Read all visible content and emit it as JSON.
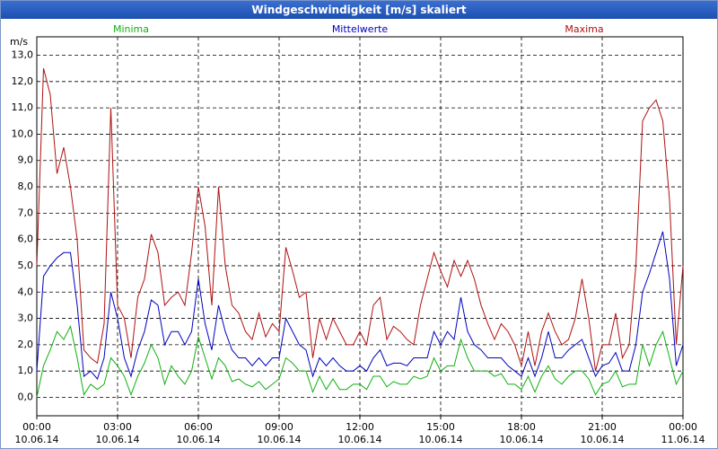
{
  "chart_data": {
    "type": "line",
    "title": "Windgeschwindigkeit [m/s] skaliert",
    "y_label": "m/s",
    "x": [
      0,
      0.25,
      0.5,
      0.75,
      1,
      1.25,
      1.5,
      1.75,
      2,
      2.25,
      2.5,
      2.75,
      3,
      3.25,
      3.5,
      3.75,
      4,
      4.25,
      4.5,
      4.75,
      5,
      5.25,
      5.5,
      5.75,
      6,
      6.25,
      6.5,
      6.75,
      7,
      7.25,
      7.5,
      7.75,
      8,
      8.25,
      8.5,
      8.75,
      9,
      9.25,
      9.5,
      9.75,
      10,
      10.25,
      10.5,
      10.75,
      11,
      11.25,
      11.5,
      11.75,
      12,
      12.25,
      12.5,
      12.75,
      13,
      13.25,
      13.5,
      13.75,
      14,
      14.25,
      14.5,
      14.75,
      15,
      15.25,
      15.5,
      15.75,
      16,
      16.25,
      16.5,
      16.75,
      17,
      17.25,
      17.5,
      17.75,
      18,
      18.25,
      18.5,
      18.75,
      19,
      19.25,
      19.5,
      19.75,
      20,
      20.25,
      20.5,
      20.75,
      21,
      21.25,
      21.5,
      21.75,
      22,
      22.25,
      22.5,
      22.75,
      23,
      23.25,
      23.5,
      23.75,
      24
    ],
    "series": [
      {
        "name": "Minima",
        "color": "#10b010",
        "values": [
          0,
          1.2,
          1.8,
          2.5,
          2.2,
          2.7,
          1.5,
          0.1,
          0.5,
          0.3,
          0.5,
          1.5,
          1.2,
          0.8,
          0.1,
          0.8,
          1.3,
          2.0,
          1.5,
          0.5,
          1.2,
          0.8,
          0.5,
          1.0,
          2.3,
          1.5,
          0.7,
          1.5,
          1.2,
          0.6,
          0.7,
          0.5,
          0.4,
          0.6,
          0.3,
          0.5,
          0.7,
          1.5,
          1.3,
          1.0,
          1.0,
          0.2,
          0.8,
          0.3,
          0.7,
          0.3,
          0.3,
          0.5,
          0.5,
          0.3,
          0.8,
          0.8,
          0.4,
          0.6,
          0.5,
          0.5,
          0.8,
          0.7,
          0.8,
          1.5,
          1.0,
          1.2,
          1.2,
          2.2,
          1.5,
          1.0,
          1.0,
          1.0,
          0.8,
          0.9,
          0.5,
          0.5,
          0.3,
          0.8,
          0.2,
          0.8,
          1.2,
          0.7,
          0.5,
          0.8,
          1.0,
          1.0,
          0.7,
          0.1,
          0.5,
          0.6,
          1.0,
          0.4,
          0.5,
          0.5,
          2.0,
          1.2,
          2.0,
          2.5,
          1.5,
          0.5,
          1.0
        ]
      },
      {
        "name": "Mittelwerte",
        "color": "#0000c0",
        "values": [
          1.0,
          4.6,
          5.0,
          5.3,
          5.5,
          5.5,
          3.5,
          0.8,
          1.0,
          0.7,
          1.5,
          4.0,
          3.0,
          1.5,
          0.8,
          1.8,
          2.5,
          3.7,
          3.5,
          2.0,
          2.5,
          2.5,
          2.0,
          2.5,
          4.5,
          2.8,
          1.8,
          3.5,
          2.5,
          1.8,
          1.5,
          1.5,
          1.2,
          1.5,
          1.2,
          1.5,
          1.5,
          3.0,
          2.5,
          2.0,
          1.8,
          0.8,
          1.5,
          1.2,
          1.5,
          1.2,
          1.0,
          1.0,
          1.2,
          1.0,
          1.5,
          1.8,
          1.2,
          1.3,
          1.3,
          1.2,
          1.5,
          1.5,
          1.5,
          2.5,
          2.0,
          2.5,
          2.2,
          3.8,
          2.5,
          2.0,
          1.8,
          1.5,
          1.5,
          1.5,
          1.2,
          1.0,
          0.8,
          1.5,
          0.8,
          1.5,
          2.5,
          1.5,
          1.5,
          1.8,
          2.0,
          2.2,
          1.5,
          0.8,
          1.2,
          1.3,
          1.7,
          1.0,
          1.0,
          2.0,
          4.0,
          4.7,
          5.5,
          6.3,
          4.5,
          1.2,
          2.0
        ]
      },
      {
        "name": "Maxima",
        "color": "#b01010",
        "values": [
          5.0,
          12.5,
          11.5,
          8.5,
          9.5,
          8.0,
          6.0,
          1.8,
          1.5,
          1.3,
          2.8,
          11.0,
          3.5,
          3.0,
          1.5,
          3.8,
          4.5,
          6.2,
          5.5,
          3.5,
          3.8,
          4.0,
          3.5,
          5.5,
          8.0,
          6.5,
          3.5,
          8.0,
          5.0,
          3.5,
          3.2,
          2.5,
          2.2,
          3.2,
          2.3,
          2.8,
          2.5,
          5.7,
          4.8,
          3.8,
          4.0,
          1.5,
          3.0,
          2.2,
          3.0,
          2.5,
          2.0,
          2.0,
          2.5,
          2.0,
          3.5,
          3.8,
          2.2,
          2.7,
          2.5,
          2.2,
          2.0,
          3.5,
          4.5,
          5.5,
          4.8,
          4.2,
          5.2,
          4.6,
          5.2,
          4.5,
          3.5,
          2.8,
          2.2,
          2.8,
          2.5,
          2.0,
          1.2,
          2.5,
          1.2,
          2.5,
          3.2,
          2.5,
          2.0,
          2.2,
          3.0,
          4.5,
          3.0,
          1.0,
          2.0,
          2.0,
          3.2,
          1.5,
          2.0,
          5.0,
          10.5,
          11.0,
          11.3,
          10.5,
          7.5,
          2.0,
          5.0
        ]
      }
    ],
    "xlim": [
      0,
      24
    ],
    "xticks": [
      {
        "value": 0,
        "label": "00:00 10.06.14"
      },
      {
        "value": 3,
        "label": "03:00 10.06.14"
      },
      {
        "value": 6,
        "label": "06:00 10.06.14"
      },
      {
        "value": 9,
        "label": "09:00 10.06.14"
      },
      {
        "value": 12,
        "label": "12:00 10.06.14"
      },
      {
        "value": 15,
        "label": "15:00 10.06.14"
      },
      {
        "value": 18,
        "label": "18:00 10.06.14"
      },
      {
        "value": 21,
        "label": "21:00 10.06.14"
      },
      {
        "value": 24,
        "label": "00:00 11.06.14"
      }
    ],
    "ylim": [
      -0.7,
      13.7
    ],
    "yticks": [
      {
        "value": 0,
        "label": "0,0"
      },
      {
        "value": 1,
        "label": "1,0"
      },
      {
        "value": 2,
        "label": "2,0"
      },
      {
        "value": 3,
        "label": "3,0"
      },
      {
        "value": 4,
        "label": "4,0"
      },
      {
        "value": 5,
        "label": "5,0"
      },
      {
        "value": 6,
        "label": "6,0"
      },
      {
        "value": 7,
        "label": "7,0"
      },
      {
        "value": 8,
        "label": "8,0"
      },
      {
        "value": 9,
        "label": "9,0"
      },
      {
        "value": 10,
        "label": "10,0"
      },
      {
        "value": 11,
        "label": "11,0"
      },
      {
        "value": 12,
        "label": "12,0"
      },
      {
        "value": 13,
        "label": "13,0"
      }
    ],
    "grid": true
  }
}
